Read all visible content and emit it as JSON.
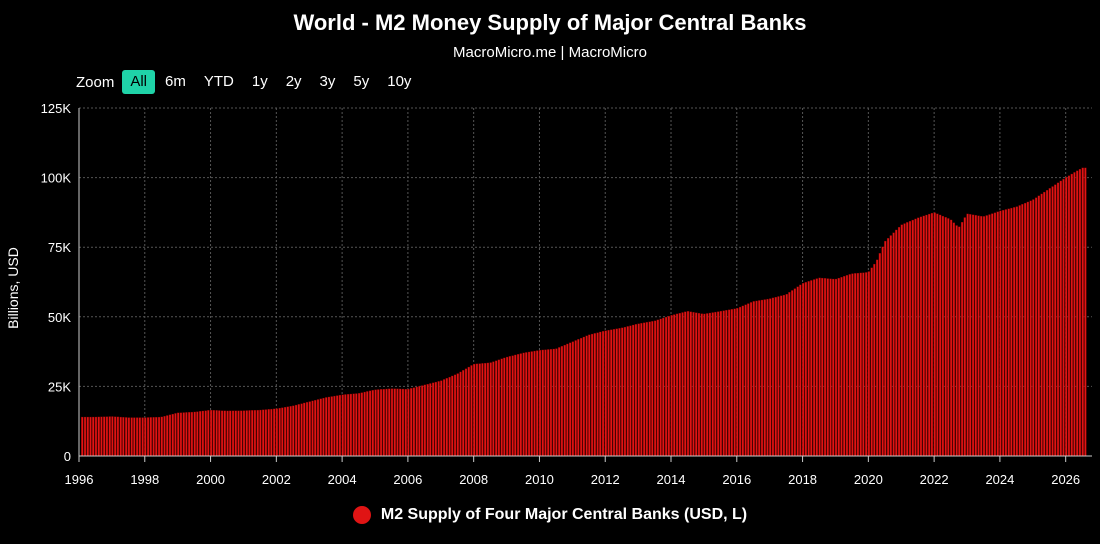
{
  "header": {
    "title": "World - M2 Money Supply of Major Central Banks",
    "subtitle": "MacroMicro.me | MacroMicro"
  },
  "zoom": {
    "label": "Zoom",
    "options": [
      "All",
      "6m",
      "YTD",
      "1y",
      "2y",
      "3y",
      "5y",
      "10y"
    ],
    "active": "All"
  },
  "colors": {
    "series": "#e01414",
    "background": "#000000",
    "grid": "#555555",
    "active_button": "#1fd3a8"
  },
  "chart_data": {
    "type": "bar",
    "title": "World - M2 Money Supply of Major Central Banks",
    "ylabel": "Billions, USD",
    "xlabel": "",
    "ylim": [
      0,
      125000
    ],
    "xlim": [
      1996,
      2026.8
    ],
    "y_ticks": [
      0,
      25000,
      50000,
      75000,
      100000,
      125000
    ],
    "y_tick_labels": [
      "0",
      "25K",
      "50K",
      "75K",
      "100K",
      "125K"
    ],
    "x_ticks": [
      1996,
      1998,
      2000,
      2002,
      2004,
      2006,
      2008,
      2010,
      2012,
      2014,
      2016,
      2018,
      2020,
      2022,
      2024,
      2026
    ],
    "x_tick_labels": [
      "1996",
      "1998",
      "2000",
      "2002",
      "2004",
      "2006",
      "2008",
      "2010",
      "2012",
      "2014",
      "2016",
      "2018",
      "2020",
      "2022",
      "2024",
      "2026"
    ],
    "grid": true,
    "legend_position": "bottom-center",
    "series": [
      {
        "name": "M2 Supply of Four Major Central Banks (USD, L)",
        "x": [
          1996.0,
          1996.5,
          1997.0,
          1997.5,
          1998.0,
          1998.5,
          1999.0,
          1999.5,
          2000.0,
          2000.5,
          2001.0,
          2001.5,
          2002.0,
          2002.5,
          2003.0,
          2003.5,
          2004.0,
          2004.5,
          2005.0,
          2005.5,
          2006.0,
          2006.5,
          2007.0,
          2007.5,
          2008.0,
          2008.5,
          2009.0,
          2009.5,
          2010.0,
          2010.5,
          2011.0,
          2011.5,
          2012.0,
          2012.5,
          2013.0,
          2013.5,
          2014.0,
          2014.5,
          2015.0,
          2015.5,
          2016.0,
          2016.5,
          2017.0,
          2017.5,
          2018.0,
          2018.5,
          2019.0,
          2019.5,
          2020.0,
          2020.25,
          2020.5,
          2021.0,
          2021.5,
          2022.0,
          2022.5,
          2022.75,
          2023.0,
          2023.5,
          2024.0,
          2024.5,
          2025.0,
          2025.5,
          2026.0,
          2026.5
        ],
        "values": [
          14000,
          14000,
          14200,
          13800,
          13800,
          14000,
          15500,
          15800,
          16500,
          16200,
          16300,
          16500,
          17000,
          18000,
          19500,
          21000,
          22000,
          22500,
          23800,
          24200,
          24000,
          25500,
          27000,
          29500,
          33000,
          33500,
          35500,
          37000,
          38000,
          38500,
          41000,
          43500,
          45000,
          46000,
          47500,
          48500,
          50500,
          52000,
          51000,
          52000,
          53000,
          55500,
          56500,
          58000,
          62000,
          64000,
          63500,
          65500,
          66000,
          70000,
          77000,
          83000,
          85500,
          87500,
          85000,
          82000,
          87000,
          86000,
          88000,
          89500,
          92000,
          96000,
          100000,
          103500
        ]
      }
    ]
  }
}
